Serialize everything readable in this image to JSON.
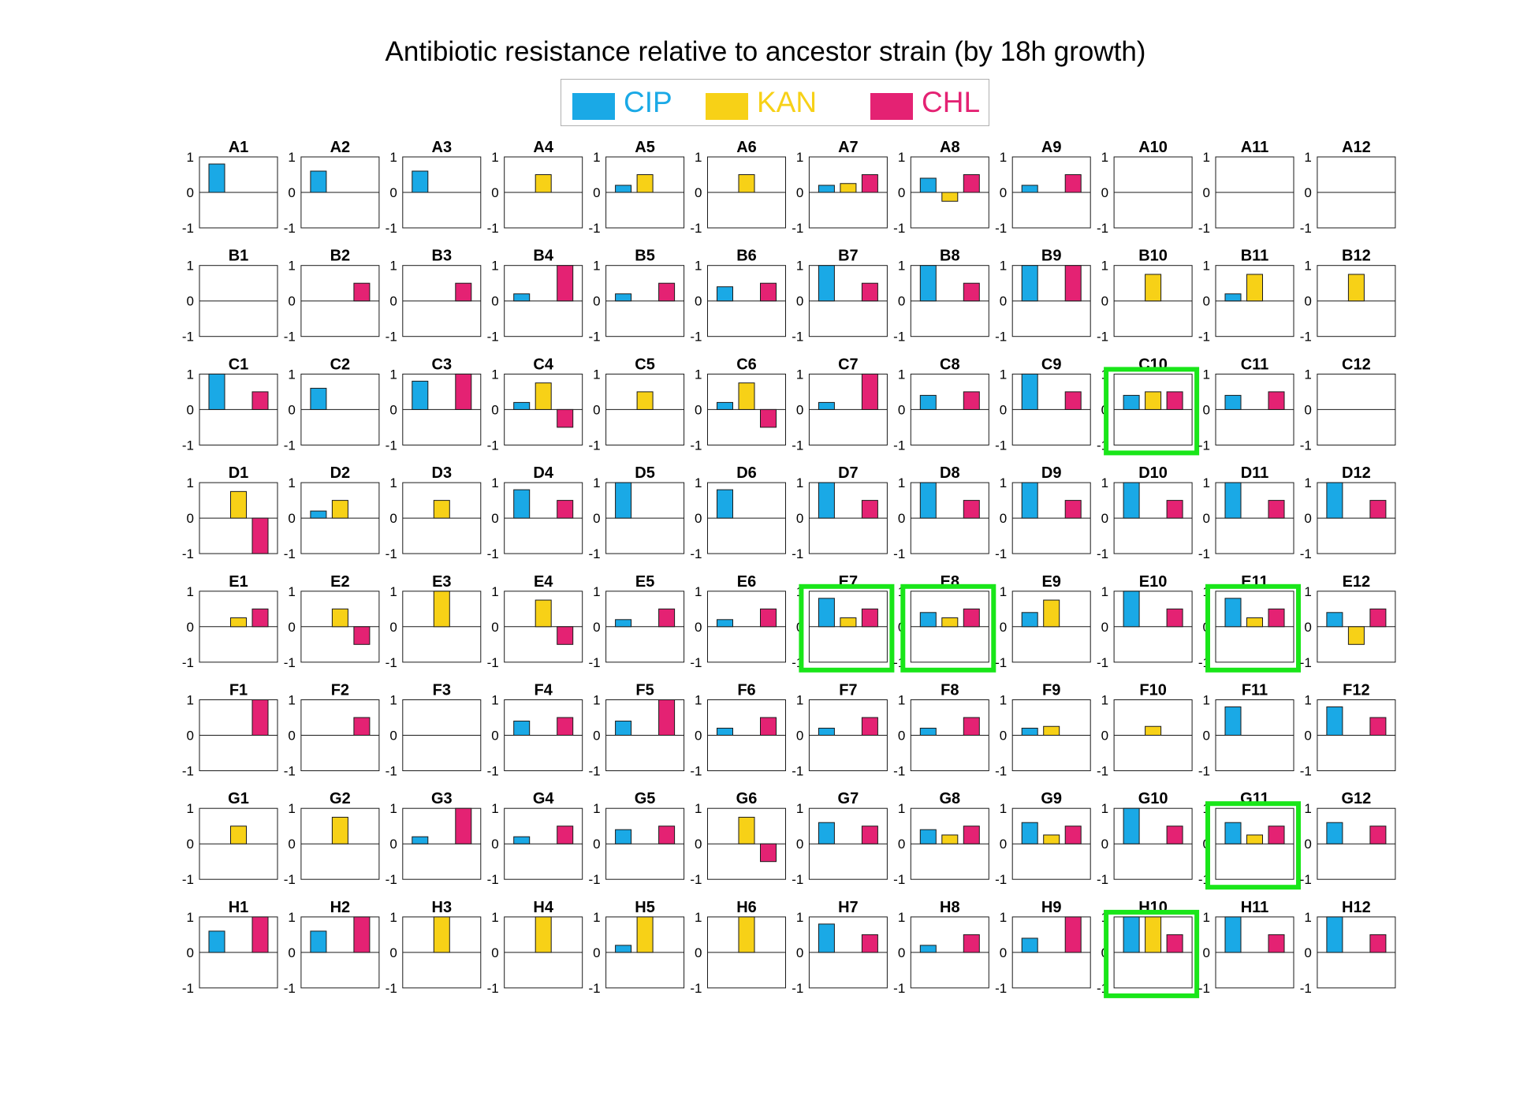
{
  "chart_data": {
    "type": "bar",
    "title": "Antibiotic resistance relative to ancestor strain (by 18h growth)",
    "legend": {
      "placement": "top-center",
      "entries": [
        {
          "name": "CIP",
          "color": "#1aa9e6"
        },
        {
          "name": "KAN",
          "color": "#f7d117"
        },
        {
          "name": "CHL",
          "color": "#e42273"
        }
      ]
    },
    "series_names": [
      "CIP",
      "KAN",
      "CHL"
    ],
    "ylim": [
      -1,
      1
    ],
    "yticks": [
      1,
      0,
      -1
    ],
    "y_tick_labels": [
      "1",
      "0",
      "-1"
    ],
    "highlight_color": "#19e619",
    "wells": [
      {
        "id": "A1",
        "values": [
          0.8,
          0,
          0
        ]
      },
      {
        "id": "A2",
        "values": [
          0.6,
          0,
          0
        ]
      },
      {
        "id": "A3",
        "values": [
          0.6,
          0,
          0
        ]
      },
      {
        "id": "A4",
        "values": [
          0,
          0.5,
          0
        ]
      },
      {
        "id": "A5",
        "values": [
          0.2,
          0.5,
          0
        ]
      },
      {
        "id": "A6",
        "values": [
          0,
          0.5,
          0
        ]
      },
      {
        "id": "A7",
        "values": [
          0.2,
          0.25,
          0.5
        ]
      },
      {
        "id": "A8",
        "values": [
          0.4,
          -0.25,
          0.5
        ]
      },
      {
        "id": "A9",
        "values": [
          0.2,
          0,
          0.5
        ]
      },
      {
        "id": "A10",
        "values": [
          0,
          0,
          0
        ]
      },
      {
        "id": "A11",
        "values": [
          0,
          0,
          0
        ]
      },
      {
        "id": "A12",
        "values": [
          0,
          0,
          0
        ]
      },
      {
        "id": "B1",
        "values": [
          0,
          0,
          0
        ]
      },
      {
        "id": "B2",
        "values": [
          0,
          0,
          0.5
        ]
      },
      {
        "id": "B3",
        "values": [
          0,
          0,
          0.5
        ]
      },
      {
        "id": "B4",
        "values": [
          0.2,
          0,
          1
        ]
      },
      {
        "id": "B5",
        "values": [
          0.2,
          0,
          0.5
        ]
      },
      {
        "id": "B6",
        "values": [
          0.4,
          0,
          0.5
        ]
      },
      {
        "id": "B7",
        "values": [
          1,
          0,
          0.5
        ]
      },
      {
        "id": "B8",
        "values": [
          1,
          0,
          0.5
        ]
      },
      {
        "id": "B9",
        "values": [
          1,
          0,
          1
        ]
      },
      {
        "id": "B10",
        "values": [
          0,
          0.75,
          0
        ]
      },
      {
        "id": "B11",
        "values": [
          0.2,
          0.75,
          0
        ]
      },
      {
        "id": "B12",
        "values": [
          0,
          0.75,
          0
        ]
      },
      {
        "id": "C1",
        "values": [
          1,
          0,
          0.5
        ]
      },
      {
        "id": "C2",
        "values": [
          0.6,
          0,
          0
        ]
      },
      {
        "id": "C3",
        "values": [
          0.8,
          0,
          1
        ]
      },
      {
        "id": "C4",
        "values": [
          0.2,
          0.75,
          -0.5
        ]
      },
      {
        "id": "C5",
        "values": [
          0,
          0.5,
          0
        ]
      },
      {
        "id": "C6",
        "values": [
          0.2,
          0.75,
          -0.5
        ]
      },
      {
        "id": "C7",
        "values": [
          0.2,
          0,
          1
        ]
      },
      {
        "id": "C8",
        "values": [
          0.4,
          0,
          0.5
        ]
      },
      {
        "id": "C9",
        "values": [
          1,
          0,
          0.5
        ]
      },
      {
        "id": "C10",
        "values": [
          0.4,
          0.5,
          0.5
        ],
        "highlight": true
      },
      {
        "id": "C11",
        "values": [
          0.4,
          0,
          0.5
        ]
      },
      {
        "id": "C12",
        "values": [
          0,
          0,
          0
        ]
      },
      {
        "id": "D1",
        "values": [
          0,
          0.75,
          -1
        ]
      },
      {
        "id": "D2",
        "values": [
          0.2,
          0.5,
          0
        ]
      },
      {
        "id": "D3",
        "values": [
          0,
          0.5,
          0
        ]
      },
      {
        "id": "D4",
        "values": [
          0.8,
          0,
          0.5
        ]
      },
      {
        "id": "D5",
        "values": [
          1,
          0,
          0
        ]
      },
      {
        "id": "D6",
        "values": [
          0.8,
          0,
          0
        ]
      },
      {
        "id": "D7",
        "values": [
          1,
          0,
          0.5
        ]
      },
      {
        "id": "D8",
        "values": [
          1,
          0,
          0.5
        ]
      },
      {
        "id": "D9",
        "values": [
          1,
          0,
          0.5
        ]
      },
      {
        "id": "D10",
        "values": [
          1,
          0,
          0.5
        ]
      },
      {
        "id": "D11",
        "values": [
          1,
          0,
          0.5
        ]
      },
      {
        "id": "D12",
        "values": [
          1,
          0,
          0.5
        ]
      },
      {
        "id": "E1",
        "values": [
          0,
          0.25,
          0.5
        ]
      },
      {
        "id": "E2",
        "values": [
          0,
          0.5,
          -0.5
        ]
      },
      {
        "id": "E3",
        "values": [
          0,
          1,
          0
        ]
      },
      {
        "id": "E4",
        "values": [
          0,
          0.75,
          -0.5
        ]
      },
      {
        "id": "E5",
        "values": [
          0.2,
          0,
          0.5
        ]
      },
      {
        "id": "E6",
        "values": [
          0.2,
          0,
          0.5
        ]
      },
      {
        "id": "E7",
        "values": [
          0.8,
          0.25,
          0.5
        ],
        "highlight": true
      },
      {
        "id": "E8",
        "values": [
          0.4,
          0.25,
          0.5
        ],
        "highlight": true
      },
      {
        "id": "E9",
        "values": [
          0.4,
          0.75,
          0
        ]
      },
      {
        "id": "E10",
        "values": [
          1,
          0,
          0.5
        ]
      },
      {
        "id": "E11",
        "values": [
          0.8,
          0.25,
          0.5
        ],
        "highlight": true
      },
      {
        "id": "E12",
        "values": [
          0.4,
          -0.5,
          0.5
        ]
      },
      {
        "id": "F1",
        "values": [
          0,
          0,
          1
        ]
      },
      {
        "id": "F2",
        "values": [
          0,
          0,
          0.5
        ]
      },
      {
        "id": "F3",
        "values": [
          0,
          0,
          0
        ]
      },
      {
        "id": "F4",
        "values": [
          0.4,
          0,
          0.5
        ]
      },
      {
        "id": "F5",
        "values": [
          0.4,
          0,
          1
        ]
      },
      {
        "id": "F6",
        "values": [
          0.2,
          0,
          0.5
        ]
      },
      {
        "id": "F7",
        "values": [
          0.2,
          0,
          0.5
        ]
      },
      {
        "id": "F8",
        "values": [
          0.2,
          0,
          0.5
        ]
      },
      {
        "id": "F9",
        "values": [
          0.2,
          0.25,
          0
        ]
      },
      {
        "id": "F10",
        "values": [
          0,
          0.25,
          0
        ]
      },
      {
        "id": "F11",
        "values": [
          0.8,
          0,
          0
        ]
      },
      {
        "id": "F12",
        "values": [
          0.8,
          0,
          0.5
        ]
      },
      {
        "id": "G1",
        "values": [
          0,
          0.5,
          0
        ]
      },
      {
        "id": "G2",
        "values": [
          0,
          0.75,
          0
        ]
      },
      {
        "id": "G3",
        "values": [
          0.2,
          0,
          1
        ]
      },
      {
        "id": "G4",
        "values": [
          0.2,
          0,
          0.5
        ]
      },
      {
        "id": "G5",
        "values": [
          0.4,
          0,
          0.5
        ]
      },
      {
        "id": "G6",
        "values": [
          0,
          0.75,
          -0.5
        ]
      },
      {
        "id": "G7",
        "values": [
          0.6,
          0,
          0.5
        ]
      },
      {
        "id": "G8",
        "values": [
          0.4,
          0.25,
          0.5
        ]
      },
      {
        "id": "G9",
        "values": [
          0.6,
          0.25,
          0.5
        ]
      },
      {
        "id": "G10",
        "values": [
          1,
          0,
          0.5
        ]
      },
      {
        "id": "G11",
        "values": [
          0.6,
          0.25,
          0.5
        ],
        "highlight": true
      },
      {
        "id": "G12",
        "values": [
          0.6,
          0,
          0.5
        ]
      },
      {
        "id": "H1",
        "values": [
          0.6,
          0,
          1
        ]
      },
      {
        "id": "H2",
        "values": [
          0.6,
          0,
          1
        ]
      },
      {
        "id": "H3",
        "values": [
          0,
          1,
          0
        ]
      },
      {
        "id": "H4",
        "values": [
          0,
          1,
          0
        ]
      },
      {
        "id": "H5",
        "values": [
          0.2,
          1,
          0
        ]
      },
      {
        "id": "H6",
        "values": [
          0,
          1,
          0
        ]
      },
      {
        "id": "H7",
        "values": [
          0.8,
          0,
          0.5
        ]
      },
      {
        "id": "H8",
        "values": [
          0.2,
          0,
          0.5
        ]
      },
      {
        "id": "H9",
        "values": [
          0.4,
          0,
          1
        ]
      },
      {
        "id": "H10",
        "values": [
          1,
          1,
          0.5
        ],
        "highlight": true
      },
      {
        "id": "H11",
        "values": [
          1,
          0,
          0.5
        ]
      },
      {
        "id": "H12",
        "values": [
          1,
          0,
          0.5
        ]
      }
    ]
  }
}
